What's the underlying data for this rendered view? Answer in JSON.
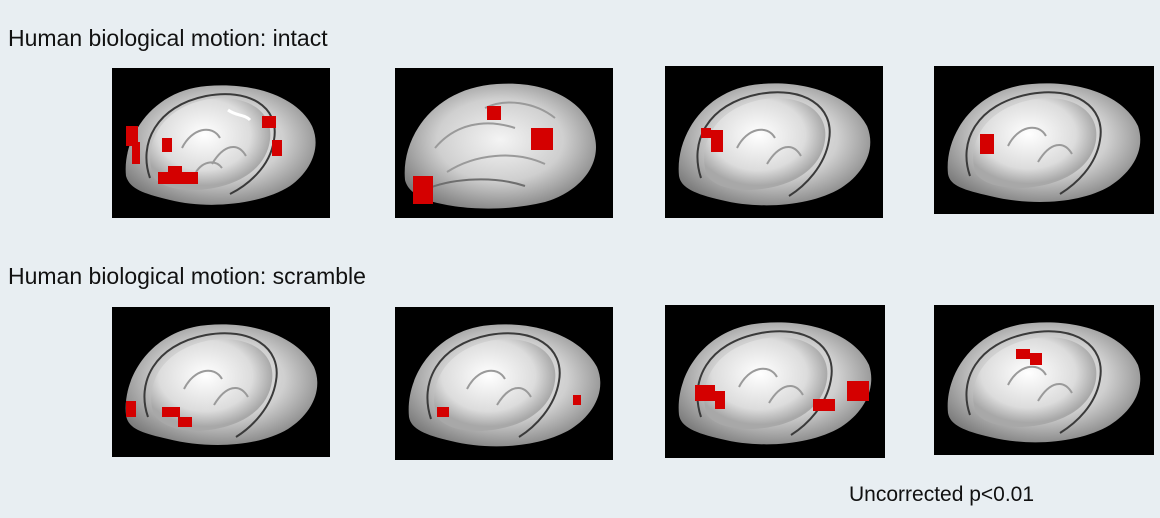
{
  "rows": [
    {
      "title": "Human biological motion: intact"
    },
    {
      "title": "Human biological motion: scramble"
    }
  ],
  "note": "Uncorrected p<0.01",
  "colors": {
    "background": "#e8eef2",
    "panel": "#000000",
    "activation": "#d40000",
    "cortex_light": "#e9e9e9",
    "cortex_dark": "#8a8a8a"
  }
}
